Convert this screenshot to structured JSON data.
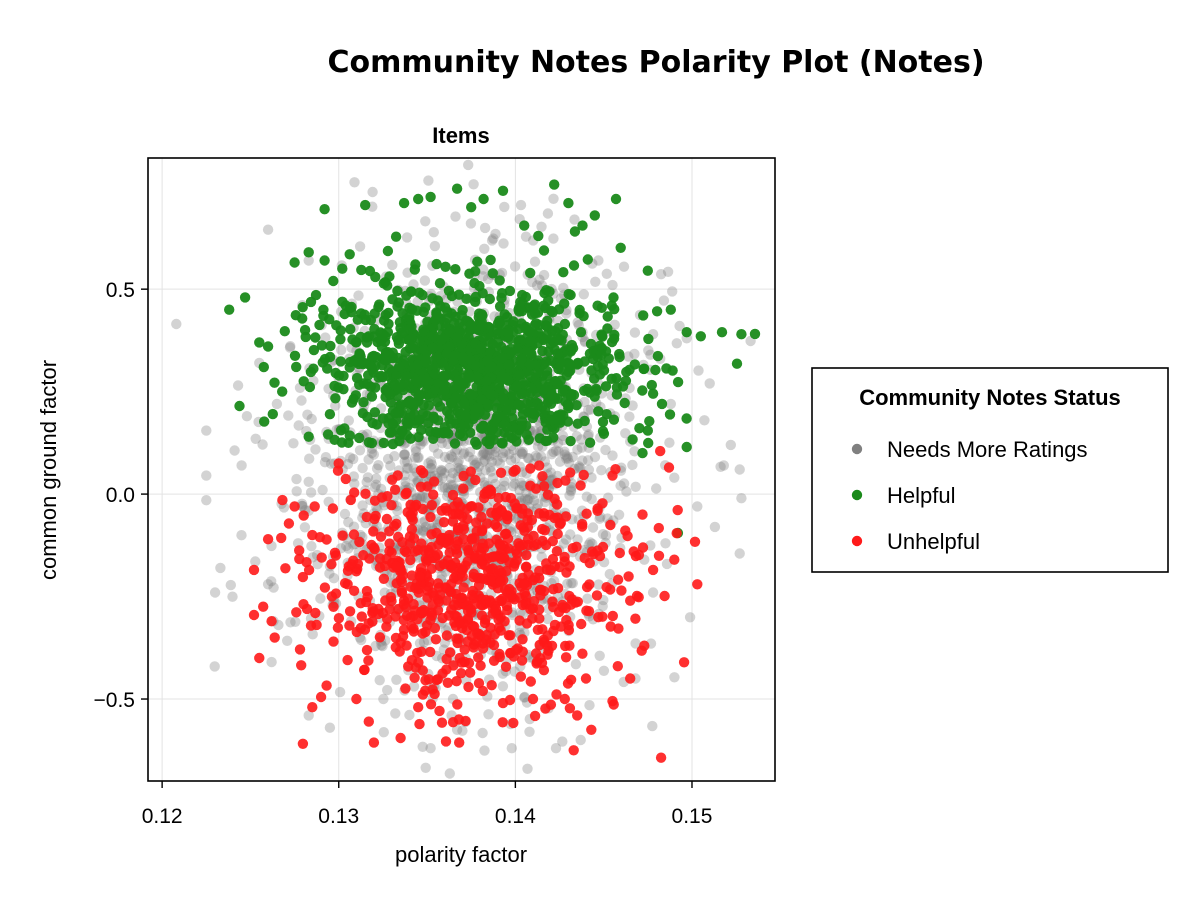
{
  "chart_data": {
    "type": "scatter",
    "title": "Community Notes Polarity Plot (Notes)",
    "subtitle": "Items",
    "xlabel": "polarity factor",
    "ylabel": "common ground factor",
    "xlim": [
      0.1192,
      0.1547
    ],
    "ylim": [
      -0.7,
      0.82
    ],
    "xticks": [
      {
        "value": 0.12,
        "label": "0.12"
      },
      {
        "value": 0.13,
        "label": "0.13"
      },
      {
        "value": 0.14,
        "label": "0.14"
      },
      {
        "value": 0.15,
        "label": "0.15"
      }
    ],
    "yticks": [
      {
        "value": 0.5,
        "label": "0.5"
      },
      {
        "value": 0.0,
        "label": "0.0"
      },
      {
        "value": -0.5,
        "label": "−0.5"
      }
    ],
    "grid": true,
    "legend": {
      "title": "Community Notes Status",
      "placement": "right"
    },
    "series": [
      {
        "name": "Needs More Ratings",
        "color": "#808080",
        "opacity": 0.35,
        "cluster": {
          "x_mean": 0.1375,
          "x_sd": 0.0045,
          "y_mean": 0.05,
          "y_sd": 0.26,
          "count": 1500
        },
        "points": [
          [
            0.1208,
            0.415
          ],
          [
            0.1225,
            0.155
          ],
          [
            0.1225,
            0.045
          ],
          [
            0.1225,
            -0.015
          ],
          [
            0.123,
            -0.24
          ],
          [
            0.1243,
            0.265
          ],
          [
            0.1248,
            0.19
          ],
          [
            0.1253,
            0.135
          ],
          [
            0.126,
            0.645
          ],
          [
            0.1262,
            -0.41
          ],
          [
            0.1283,
            -0.54
          ],
          [
            0.1295,
            -0.57
          ],
          [
            0.1332,
            -0.535
          ],
          [
            0.1352,
            -0.62
          ],
          [
            0.1367,
            -0.575
          ],
          [
            0.1398,
            -0.62
          ],
          [
            0.1408,
            -0.58
          ],
          [
            0.1423,
            -0.62
          ],
          [
            0.1442,
            -0.515
          ],
          [
            0.1468,
            -0.45
          ],
          [
            0.1478,
            0.39
          ],
          [
            0.1482,
            0.33
          ],
          [
            0.1488,
            0.22
          ],
          [
            0.149,
            0.04
          ],
          [
            0.1493,
            0.41
          ],
          [
            0.1497,
            0.38
          ],
          [
            0.1503,
            -0.03
          ],
          [
            0.1507,
            0.18
          ],
          [
            0.151,
            0.27
          ],
          [
            0.1513,
            -0.08
          ],
          [
            0.1518,
            0.07
          ],
          [
            0.1522,
            0.12
          ],
          [
            0.1527,
            0.06
          ],
          [
            0.1528,
            -0.01
          ],
          [
            0.1527,
            -0.145
          ],
          [
            0.1485,
            -0.12
          ],
          [
            0.1478,
            -0.24
          ],
          [
            0.1473,
            -0.16
          ],
          [
            0.1255,
            0.32
          ],
          [
            0.1265,
            0.22
          ],
          [
            0.1263,
            -0.31
          ],
          [
            0.1283,
            0.57
          ],
          [
            0.1447,
            0.57
          ],
          [
            0.1455,
            0.51
          ],
          [
            0.1437,
            -0.6
          ],
          [
            0.1277,
            -0.12
          ],
          [
            0.1283,
            0.03
          ],
          [
            0.1245,
            0.07
          ],
          [
            0.1233,
            -0.18
          ],
          [
            0.126,
            -0.22
          ]
        ]
      },
      {
        "name": "Helpful",
        "color": "#1a8a1a",
        "opacity": 0.95,
        "cluster": {
          "x_mean": 0.1375,
          "x_sd": 0.0042,
          "y_mean": 0.31,
          "y_sd": 0.1,
          "y_min": 0.12,
          "count": 1200
        },
        "points": [
          [
            0.1238,
            0.45
          ],
          [
            0.1247,
            0.48
          ],
          [
            0.1255,
            0.37
          ],
          [
            0.126,
            0.36
          ],
          [
            0.1268,
            0.25
          ],
          [
            0.1275,
            0.565
          ],
          [
            0.1283,
            0.59
          ],
          [
            0.1292,
            0.57
          ],
          [
            0.1292,
            0.695
          ],
          [
            0.1302,
            0.55
          ],
          [
            0.1315,
            0.705
          ],
          [
            0.1337,
            0.71
          ],
          [
            0.1345,
            0.72
          ],
          [
            0.1352,
            0.725
          ],
          [
            0.1367,
            0.745
          ],
          [
            0.1375,
            0.7
          ],
          [
            0.1382,
            0.72
          ],
          [
            0.1393,
            0.74
          ],
          [
            0.1405,
            0.655
          ],
          [
            0.1422,
            0.755
          ],
          [
            0.1413,
            0.63
          ],
          [
            0.143,
            0.71
          ],
          [
            0.1438,
            0.655
          ],
          [
            0.1445,
            0.68
          ],
          [
            0.1457,
            0.72
          ],
          [
            0.1475,
            0.545
          ],
          [
            0.1488,
            0.45
          ],
          [
            0.1497,
            0.395
          ],
          [
            0.1505,
            0.385
          ],
          [
            0.1517,
            0.395
          ],
          [
            0.1528,
            0.39
          ],
          [
            0.1497,
            0.115
          ],
          [
            0.1492,
            -0.095
          ],
          [
            0.1283,
            0.14
          ],
          [
            0.1325,
            0.39
          ],
          [
            0.1418,
            0.13
          ],
          [
            0.1472,
            0.1
          ],
          [
            0.1478,
            0.245
          ],
          [
            0.1483,
            0.22
          ],
          [
            0.1475,
            0.155
          ]
        ]
      },
      {
        "name": "Unhelpful",
        "color": "#ff1a1a",
        "opacity": 0.9,
        "cluster": {
          "x_mean": 0.1375,
          "x_sd": 0.0042,
          "y_mean": -0.22,
          "y_sd": 0.14,
          "y_max": 0.07,
          "count": 750
        },
        "points": [
          [
            0.1252,
            -0.185
          ],
          [
            0.1252,
            -0.295
          ],
          [
            0.1255,
            -0.4
          ],
          [
            0.126,
            -0.11
          ],
          [
            0.1262,
            -0.31
          ],
          [
            0.1275,
            -0.03
          ],
          [
            0.1282,
            -0.28
          ],
          [
            0.1285,
            -0.52
          ],
          [
            0.129,
            -0.495
          ],
          [
            0.1297,
            -0.36
          ],
          [
            0.1305,
            -0.405
          ],
          [
            0.131,
            -0.5
          ],
          [
            0.1317,
            -0.555
          ],
          [
            0.1335,
            -0.595
          ],
          [
            0.1345,
            -0.52
          ],
          [
            0.1368,
            -0.55
          ],
          [
            0.1393,
            -0.51
          ],
          [
            0.141,
            -0.5
          ],
          [
            0.1428,
            -0.5
          ],
          [
            0.1433,
            -0.625
          ],
          [
            0.1435,
            -0.54
          ],
          [
            0.1443,
            -0.575
          ],
          [
            0.1455,
            -0.505
          ],
          [
            0.1465,
            -0.45
          ],
          [
            0.1473,
            -0.37
          ],
          [
            0.1482,
            0.105
          ],
          [
            0.1487,
            0.065
          ],
          [
            0.149,
            -0.16
          ],
          [
            0.1503,
            -0.22
          ],
          [
            0.1478,
            -0.185
          ],
          [
            0.1467,
            -0.14
          ],
          [
            0.1458,
            -0.42
          ],
          [
            0.144,
            -0.45
          ],
          [
            0.1297,
            -0.275
          ],
          [
            0.1305,
            -0.22
          ],
          [
            0.13,
            0.075
          ],
          [
            0.1285,
            -0.1
          ],
          [
            0.1455,
            0.045
          ],
          [
            0.1472,
            -0.05
          ],
          [
            0.1465,
            -0.26
          ]
        ]
      }
    ]
  }
}
